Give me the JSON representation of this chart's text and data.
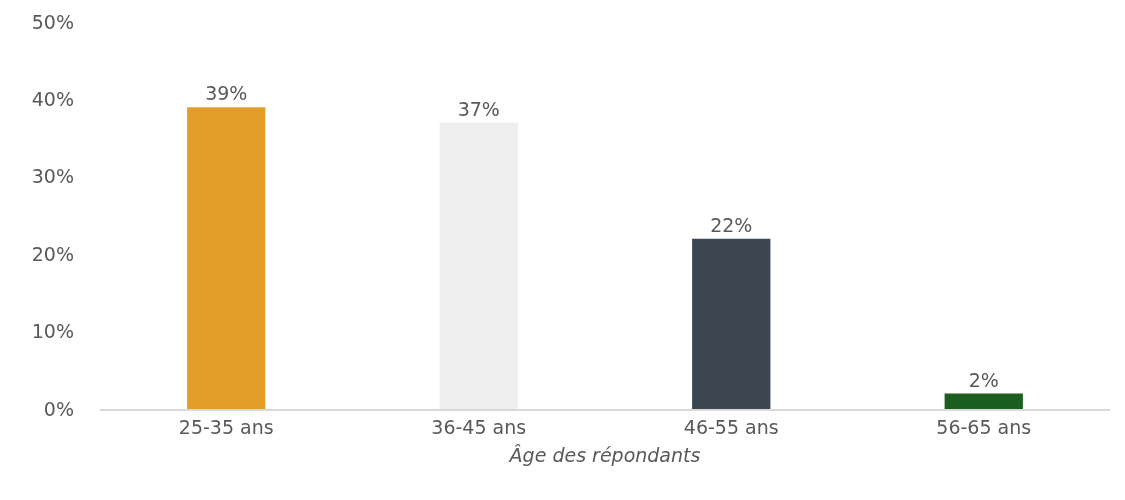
{
  "chart_data": {
    "type": "bar",
    "xlabel": "Âge des répondants",
    "categories": [
      "25-35 ans",
      "36-45 ans",
      "46-55 ans",
      "56-65 ans"
    ],
    "values": [
      39,
      37,
      22,
      2
    ],
    "colors": [
      "#e39e2a",
      "#efefef",
      "#3c4650",
      "#1a5e20"
    ],
    "value_labels": [
      "39%",
      "37%",
      "22%",
      "2%"
    ],
    "ylim": [
      0,
      50
    ],
    "yticks": [
      {
        "value": 0,
        "label": "0%"
      },
      {
        "value": 10,
        "label": "10%"
      },
      {
        "value": 20,
        "label": "20%"
      },
      {
        "value": 30,
        "label": "30%"
      },
      {
        "value": 40,
        "label": "40%"
      },
      {
        "value": 50,
        "label": "50%"
      }
    ],
    "grid": false
  }
}
